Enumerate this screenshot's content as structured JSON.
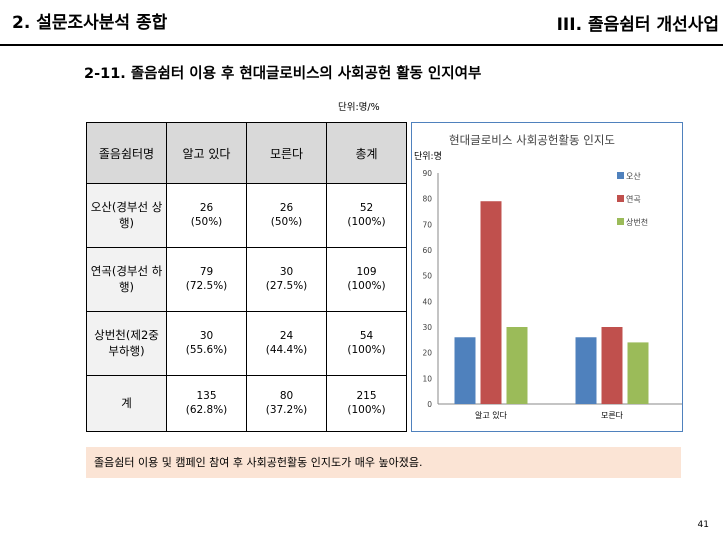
{
  "header": {
    "section_left": "2. 설문조사분석 종합",
    "section_right": "III. 졸음쉼터 개선사업"
  },
  "subtitle": "2-11. 졸음쉼터 이용 후 현대글로비스의 사회공헌 활동 인지여부",
  "unit": "단위:명/%",
  "table": {
    "headers": [
      "졸음쉼터명",
      "알고 있다",
      "모른다",
      "총계"
    ],
    "rows": [
      {
        "name": "오산(경부선 상행)",
        "cells": [
          {
            "n": "26",
            "p": "(50%)"
          },
          {
            "n": "26",
            "p": "(50%)"
          },
          {
            "n": "52",
            "p": "(100%)"
          }
        ]
      },
      {
        "name": "연곡(경부선 하행)",
        "cells": [
          {
            "n": "79",
            "p": "(72.5%)"
          },
          {
            "n": "30",
            "p": "(27.5%)"
          },
          {
            "n": "109",
            "p": "(100%)"
          }
        ]
      },
      {
        "name": "상번천(제2중 부하행)",
        "cells": [
          {
            "n": "30",
            "p": "(55.6%)"
          },
          {
            "n": "24",
            "p": "(44.4%)"
          },
          {
            "n": "54",
            "p": "(100%)"
          }
        ]
      },
      {
        "name": "계",
        "cells": [
          {
            "n": "135",
            "p": "(62.8%)"
          },
          {
            "n": "80",
            "p": "(37.2%)"
          },
          {
            "n": "215",
            "p": "(100%)"
          }
        ]
      }
    ]
  },
  "chart_data": {
    "type": "bar",
    "title": "현대글로비스 사회공헌활동 인지도",
    "ylabel": "단위:명",
    "categories": [
      "알고 있다",
      "모른다"
    ],
    "series": [
      {
        "name": "오산",
        "values": [
          26,
          26
        ],
        "color": "#4f81bd"
      },
      {
        "name": "연곡",
        "values": [
          79,
          30
        ],
        "color": "#c0504d"
      },
      {
        "name": "상번천",
        "values": [
          30,
          24
        ],
        "color": "#9bbb59"
      }
    ],
    "ylim": [
      0,
      90
    ],
    "yticks": [
      "0",
      "10",
      "20",
      "30",
      "40",
      "50",
      "60",
      "70",
      "80",
      "90"
    ],
    "grid": false,
    "legend": "top-right"
  },
  "note": "졸음쉼터 이용 및 캠페인 참여 후 사회공헌활동 인지도가 매우 높아졌음.",
  "page_number": "41"
}
